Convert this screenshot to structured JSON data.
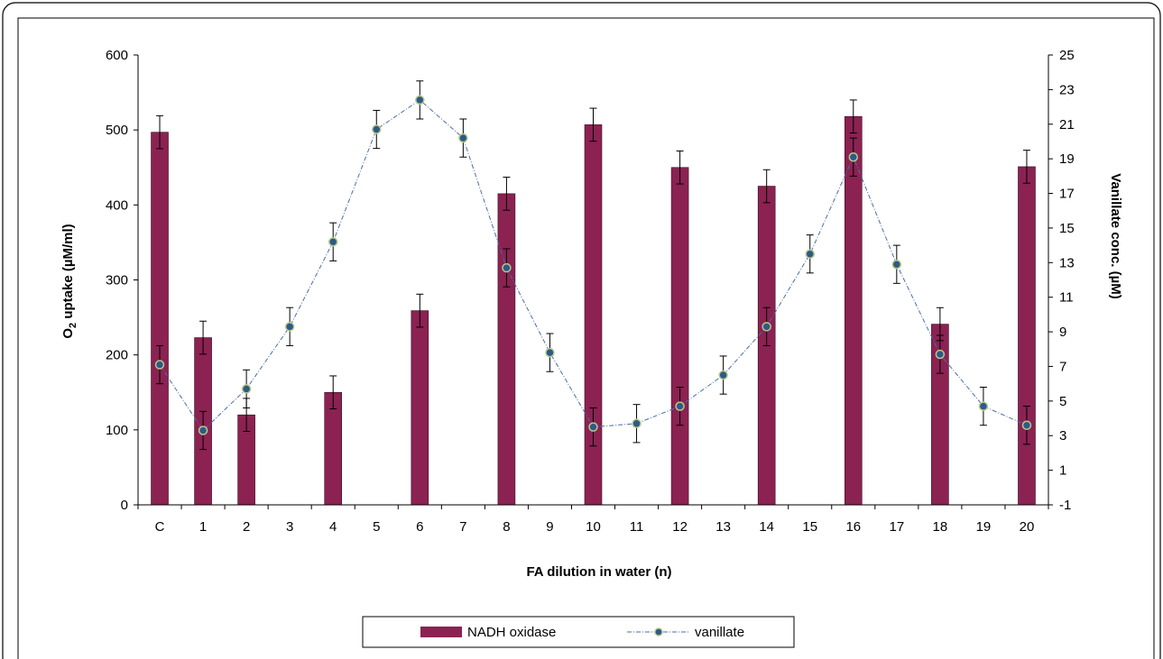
{
  "chart_data": {
    "type": "bar",
    "categories": [
      "C",
      "1",
      "2",
      "3",
      "4",
      "5",
      "6",
      "7",
      "8",
      "9",
      "10",
      "11",
      "12",
      "13",
      "14",
      "15",
      "16",
      "17",
      "18",
      "19",
      "20"
    ],
    "xlabel": "FA dilution  in water (n)",
    "ylabel": {
      "main": "O",
      "sub": "2",
      "rest": " uptake (µM/ml)"
    },
    "y2label": "Vanillate conc.  (µM)",
    "ylim": [
      0,
      600
    ],
    "yticks": [
      0,
      100,
      200,
      300,
      400,
      500,
      600
    ],
    "y2lim": [
      -1,
      25
    ],
    "y2ticks": [
      -1,
      1,
      3,
      5,
      7,
      9,
      11,
      13,
      15,
      17,
      19,
      21,
      23,
      25
    ],
    "grid": false,
    "legend_position": "bottom-center",
    "series": [
      {
        "name": "NADH oxidase",
        "kind": "bar",
        "axis": "left",
        "color": "#8b2252",
        "values": [
          497,
          223,
          120,
          null,
          150,
          null,
          259,
          null,
          415,
          null,
          507,
          null,
          450,
          null,
          425,
          null,
          518,
          null,
          241,
          null,
          451
        ],
        "errors": [
          22,
          22,
          22,
          null,
          22,
          null,
          22,
          null,
          22,
          null,
          22,
          null,
          22,
          null,
          22,
          null,
          22,
          null,
          22,
          null,
          22
        ]
      },
      {
        "name": "vanillate",
        "kind": "line",
        "axis": "right",
        "color": "#4a6ea8",
        "marker_color": "#2e5a87",
        "values": [
          7.1,
          3.3,
          5.7,
          9.3,
          14.2,
          20.7,
          22.4,
          20.2,
          12.7,
          7.8,
          3.5,
          3.7,
          4.7,
          6.5,
          9.3,
          13.5,
          19.1,
          12.9,
          7.7,
          4.7,
          3.6
        ],
        "errors": [
          1.1,
          1.1,
          1.1,
          1.1,
          1.1,
          1.1,
          1.1,
          1.1,
          1.1,
          1.1,
          1.1,
          1.1,
          1.1,
          1.1,
          1.1,
          1.1,
          1.1,
          1.1,
          1.1,
          1.1,
          1.1
        ]
      }
    ]
  }
}
